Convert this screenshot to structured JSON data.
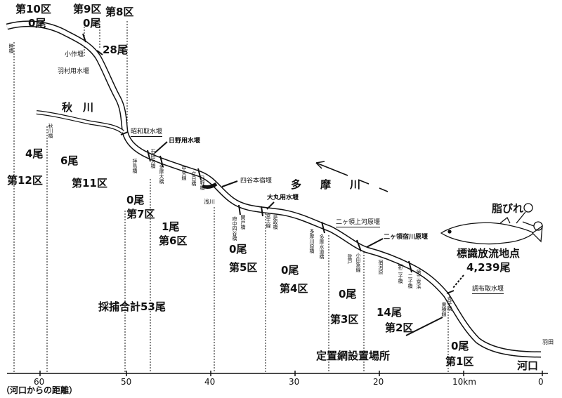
{
  "zones": {
    "z10": {
      "label": "第10区",
      "count": "0尾"
    },
    "z9": {
      "label": "第9区",
      "count": "0尾"
    },
    "z8": {
      "label": "第8区",
      "count": "28尾"
    },
    "z12": {
      "label": "第12区",
      "count": "4尾"
    },
    "z11": {
      "label": "第11区",
      "count": "6尾"
    },
    "z7": {
      "label": "第7区",
      "count": "0尾"
    },
    "z6": {
      "label": "第6区",
      "count": "1尾"
    },
    "z5": {
      "label": "第5区",
      "count": "0尾"
    },
    "z4": {
      "label": "第4区",
      "count": "0尾"
    },
    "z3": {
      "label": "第3区",
      "count": "0尾"
    },
    "z2": {
      "label": "第2区",
      "count": "14尾"
    },
    "z1": {
      "label": "第1区",
      "count": "0尾"
    }
  },
  "rivers": {
    "akigawa": "秋　川",
    "tamagawa": "多　摩　川"
  },
  "weirs": {
    "kosaku": "小作堰",
    "hamura": "羽村用水堰",
    "showa": "昭和取水堰",
    "hino": "日野用水堰",
    "yotsuya": "四谷本宿堰",
    "omaru": "大丸用水堰",
    "futako_kami": "二ヶ領上河原堰",
    "futako_shuku": "二ヶ領宿川原堰",
    "chofu": "調布取水堰"
  },
  "small_labels": [
    "睦橋",
    "秋川橋",
    "拝島橋",
    "多摩大橋",
    "立日橋",
    "中央線",
    "日野橋",
    "浅川",
    "石田大橋",
    "関戸橋",
    "府中四谷橋",
    "是政橋",
    "多摩川原橋",
    "京王線",
    "多摩水道橋",
    "小田急線",
    "登戸",
    "宿河原",
    "新二子橋",
    "二子橋",
    "第三京浜",
    "東横線",
    "丸子橋",
    "羽田"
  ],
  "release": {
    "title": "標識放流地点",
    "count": "4,239尾",
    "fin": "脂びれ"
  },
  "catch_total": "採捕合計53尾",
  "net_site": "定置網設置場所",
  "mouth": "河口",
  "axis": {
    "ticks": [
      "60",
      "50",
      "40",
      "30",
      "20",
      "10km",
      "0"
    ],
    "caption": "（河口からの距離）"
  }
}
